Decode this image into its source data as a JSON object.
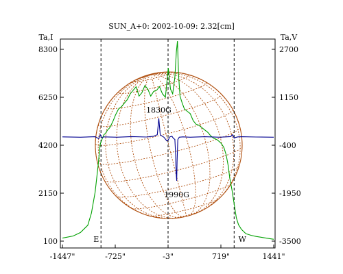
{
  "chart_data": {
    "type": "line",
    "title": "SUN_A+0: 2002-10-09: 2.32[cm]",
    "y_left_label": "Ta,I",
    "y_right_label": "Ta,V",
    "x_ticks": [
      "-1447\"",
      "-725\"",
      "-3\"",
      "719\"",
      "1441\""
    ],
    "x_tick_values": [
      -1447,
      -725,
      -3,
      719,
      1441
    ],
    "xlim": [
      -1447,
      1441
    ],
    "y_left_ticks": [
      "8300",
      "6250",
      "4200",
      "2150",
      "100"
    ],
    "y_left_tick_values": [
      8300,
      6250,
      4200,
      2150,
      100
    ],
    "y_left_lim": [
      100,
      8300
    ],
    "y_right_ticks": [
      "2700",
      "1150",
      "-400",
      "-1950",
      "-3500"
    ],
    "y_right_tick_values": [
      2700,
      1150,
      -400,
      -1950,
      -3500
    ],
    "y_right_lim": [
      -3500,
      2700
    ],
    "limb_markers": {
      "east": "E",
      "west": "W"
    },
    "limb_x": [
      -920,
      900
    ],
    "center_x": -3,
    "annotations": [
      {
        "text": "1830G",
        "x": -130,
        "y_right": 470
      },
      {
        "text": "1990G",
        "x": 115,
        "y_right": -1550
      }
    ],
    "series": [
      {
        "axis": "left",
        "color": "#00a000",
        "x": [
          -1447,
          -1300,
          -1200,
          -1100,
          -1050,
          -1000,
          -960,
          -930,
          -900,
          -880,
          -860,
          -830,
          -800,
          -760,
          -720,
          -680,
          -640,
          -600,
          -560,
          -520,
          -480,
          -440,
          -400,
          -360,
          -320,
          -280,
          -240,
          -200,
          -160,
          -120,
          -80,
          -40,
          0,
          30,
          60,
          90,
          110,
          125,
          140,
          160,
          190,
          220,
          260,
          300,
          340,
          380,
          420,
          460,
          500,
          540,
          580,
          620,
          660,
          700,
          730,
          760,
          790,
          820,
          840,
          870,
          900,
          930,
          960,
          1000,
          1060,
          1130,
          1200,
          1300,
          1441
        ],
        "y": [
          230,
          320,
          470,
          780,
          1300,
          2200,
          3300,
          4250,
          4500,
          4650,
          4700,
          4850,
          4950,
          5200,
          5500,
          5750,
          5850,
          6000,
          6150,
          6400,
          6550,
          6700,
          6300,
          6450,
          6750,
          6600,
          6300,
          6500,
          6550,
          6700,
          6400,
          6250,
          7500,
          6600,
          6400,
          7100,
          8200,
          8650,
          7200,
          6300,
          6000,
          5750,
          5650,
          5550,
          5250,
          5100,
          5050,
          4950,
          4850,
          4750,
          4600,
          4500,
          4450,
          4350,
          4250,
          4100,
          3800,
          3300,
          2800,
          2300,
          1700,
          1100,
          800,
          600,
          420,
          350,
          300,
          250,
          180
        ]
      },
      {
        "axis": "right",
        "color": "#000090",
        "x": [
          -1447,
          -1200,
          -1000,
          -950,
          -930,
          -910,
          -880,
          -700,
          -500,
          -300,
          -200,
          -150,
          -130,
          -110,
          -60,
          -20,
          0,
          20,
          50,
          70,
          90,
          100,
          108,
          115,
          120,
          130,
          150,
          200,
          300,
          500,
          700,
          850,
          880,
          900,
          920,
          950,
          1000,
          1200,
          1441
        ],
        "y": [
          -130,
          -140,
          -125,
          -190,
          -60,
          -160,
          -130,
          -140,
          -120,
          -135,
          -110,
          -60,
          470,
          -70,
          -140,
          -260,
          -230,
          -130,
          -110,
          -180,
          -210,
          -700,
          -1300,
          -1550,
          -950,
          -220,
          -140,
          -130,
          -140,
          -125,
          -140,
          -120,
          -60,
          -170,
          -150,
          -130,
          -125,
          -135,
          -140
        ]
      }
    ],
    "grid": false
  }
}
